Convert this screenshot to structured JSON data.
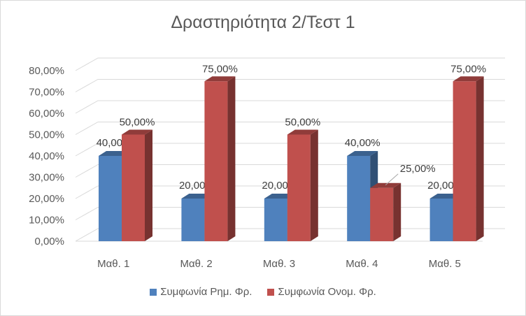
{
  "chart_data": {
    "type": "bar",
    "title": "Δραστηριότητα 2/Τεστ 1",
    "categories": [
      "Μαθ. 1",
      "Μαθ. 2",
      "Μαθ. 3",
      "Μαθ. 4",
      "Μαθ. 5"
    ],
    "series": [
      {
        "name": "Συμφωνία Ρημ. Φρ.",
        "values": [
          40,
          20,
          20,
          40,
          20
        ],
        "labels": [
          "40,00%",
          "20,00%",
          "20,00%",
          "40,00%",
          "20,00%"
        ],
        "color": "#4f81bd"
      },
      {
        "name": "Συμφωνία Ονομ. Φρ.",
        "values": [
          50,
          75,
          50,
          25,
          75
        ],
        "labels": [
          "50,00%",
          "75,00%",
          "50,00%",
          "25,00%",
          "75,00%"
        ],
        "color": "#c0504d"
      }
    ],
    "yticks": [
      "0,00%",
      "10,00%",
      "20,00%",
      "30,00%",
      "40,00%",
      "50,00%",
      "60,00%",
      "70,00%",
      "80,00%"
    ],
    "ylim": [
      0,
      80
    ],
    "grid": true,
    "style": "3d-clustered-column",
    "legend_position": "bottom"
  }
}
